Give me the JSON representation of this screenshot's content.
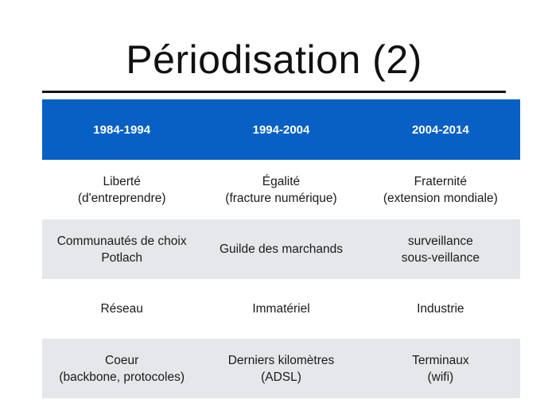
{
  "slide": {
    "title": "Périodisation (2)"
  },
  "table": {
    "headers": [
      "1984-1994",
      "1994-2004",
      "2004-2014"
    ],
    "rows": [
      [
        [
          "Liberté",
          "(d'entreprendre)"
        ],
        [
          "Égalité",
          "(fracture numérique)"
        ],
        [
          "Fraternité",
          "(extension mondiale)"
        ]
      ],
      [
        [
          "Communautés de choix",
          "Potlach"
        ],
        [
          "Guilde des marchands"
        ],
        [
          "surveillance",
          "sous-veillance"
        ]
      ],
      [
        [
          "Réseau"
        ],
        [
          "Immatériel"
        ],
        [
          "Industrie"
        ]
      ],
      [
        [
          "Coeur",
          "(backbone, protocoles)"
        ],
        [
          "Derniers kilomètres",
          "(ADSL)"
        ],
        [
          "Terminaux",
          "(wifi)"
        ]
      ]
    ]
  },
  "colors": {
    "header_background": "#0860c4",
    "shaded_row": "#e5e7ea",
    "text": "#1a1a1a"
  }
}
